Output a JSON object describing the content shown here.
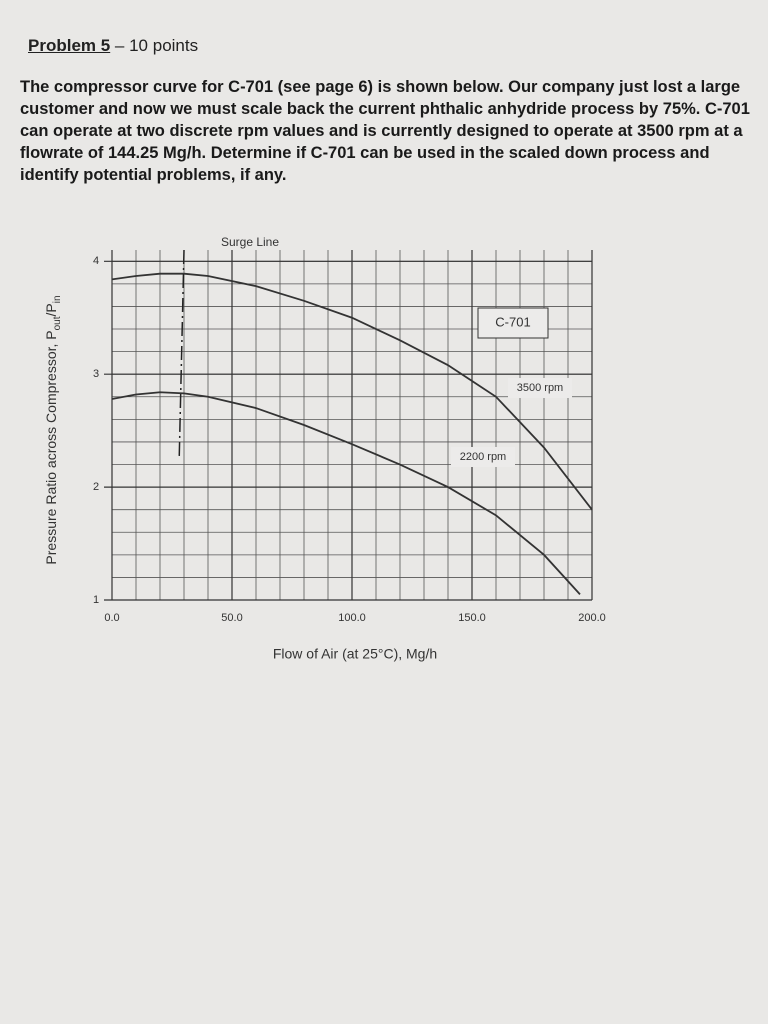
{
  "problem": {
    "heading": "Problem 5",
    "points": " – 10 points",
    "text": "The compressor curve for C-701 (see page 6) is shown below. Our company just lost a large customer and now we must scale back the current phthalic anhydride process by 75%. C-701 can operate at two discrete rpm values and is currently designed to operate at 3500 rpm at a flowrate of 144.25 Mg/h. Determine if C-701 can be used in the scaled down process and identify potential problems, if any."
  },
  "chart_data": {
    "type": "line",
    "annotations": [
      "C-701"
    ],
    "xlabel": "Flow of Air (at 25°C), Mg/h",
    "ylabel": {
      "main": "Pressure Ratio across Compressor, P",
      "sub1": "out",
      "mid": "/P",
      "sub2": "in"
    },
    "xlim": [
      0,
      200
    ],
    "ylim": [
      1,
      4.1
    ],
    "xticks": [
      {
        "value": 0,
        "label": "0.0"
      },
      {
        "value": 50,
        "label": "50.0"
      },
      {
        "value": 100,
        "label": "100.0"
      },
      {
        "value": 150,
        "label": "150.0"
      },
      {
        "value": 200,
        "label": "200.0"
      }
    ],
    "yticks": [
      1,
      2,
      3,
      4
    ],
    "grid": true,
    "minor_grid": true,
    "series": [
      {
        "name": "3500 rpm",
        "color": "#333333",
        "x": [
          0,
          10,
          20,
          30,
          40,
          60,
          80,
          100,
          120,
          140,
          160,
          180,
          200
        ],
        "values": [
          3.84,
          3.87,
          3.89,
          3.89,
          3.87,
          3.78,
          3.65,
          3.5,
          3.3,
          3.08,
          2.8,
          2.35,
          1.8
        ]
      },
      {
        "name": "2200 rpm",
        "color": "#333333",
        "x": [
          0,
          10,
          20,
          30,
          40,
          60,
          80,
          100,
          120,
          140,
          160,
          180,
          195
        ],
        "values": [
          2.78,
          2.82,
          2.84,
          2.83,
          2.8,
          2.7,
          2.55,
          2.38,
          2.2,
          2.0,
          1.75,
          1.4,
          1.05
        ]
      }
    ],
    "surge_line": {
      "name": "Surge Line",
      "x": [
        30,
        28
      ],
      "values": [
        4.1,
        2.25
      ]
    }
  }
}
